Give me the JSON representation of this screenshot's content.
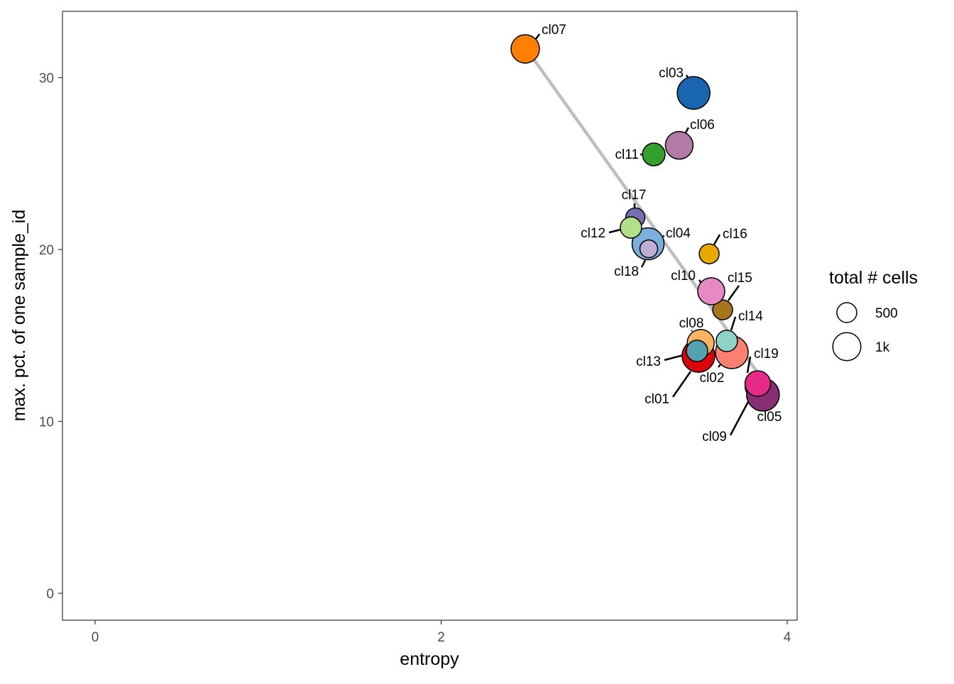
{
  "chart_data": {
    "type": "scatter",
    "xlabel": "entropy",
    "ylabel": "max. pct. of one sample_id",
    "xlim": [
      -0.1,
      4.03
    ],
    "ylim": [
      -1.6,
      33.9
    ],
    "x_ticks": [
      0,
      2,
      4
    ],
    "y_ticks": [
      0,
      10,
      20,
      30
    ],
    "grid": false,
    "legend": {
      "title": "total # cells",
      "position": "right",
      "entries": [
        {
          "label": "500",
          "value": 500
        },
        {
          "label": "1k",
          "value": 1000
        }
      ]
    },
    "trend_line": {
      "color": "#bebebe",
      "points": [
        [
          2.49,
          31.7
        ],
        [
          3.86,
          12.4
        ]
      ]
    },
    "points": [
      {
        "label": "cl09",
        "x": 3.82,
        "y": 12.0,
        "n": 600,
        "color": "#666666"
      },
      {
        "label": "cl07",
        "x": 2.486,
        "y": 31.67,
        "n": 1020,
        "color": "#FF7F00"
      },
      {
        "label": "cl03",
        "x": 3.459,
        "y": 29.11,
        "n": 1350,
        "color": "#1965B0"
      },
      {
        "label": "cl06",
        "x": 3.376,
        "y": 26.06,
        "n": 970,
        "color": "#B17BA6"
      },
      {
        "label": "cl11",
        "x": 3.229,
        "y": 25.53,
        "n": 650,
        "color": "#33A02C"
      },
      {
        "label": "cl17",
        "x": 3.122,
        "y": 21.86,
        "n": 465,
        "color": "#7570B3"
      },
      {
        "label": "cl04",
        "x": 3.196,
        "y": 20.33,
        "n": 1290,
        "color": "#7BAFDE"
      },
      {
        "label": "cl12",
        "x": 3.097,
        "y": 21.28,
        "n": 575,
        "color": "#B2DF8A"
      },
      {
        "label": "cl18",
        "x": 3.2,
        "y": 20.04,
        "n": 400,
        "color": "#BEAED4"
      },
      {
        "label": "cl16",
        "x": 3.549,
        "y": 19.75,
        "n": 500,
        "color": "#E7A900"
      },
      {
        "label": "cl15",
        "x": 3.627,
        "y": 16.49,
        "n": 500,
        "color": "#A6761D"
      },
      {
        "label": "cl10",
        "x": 3.561,
        "y": 17.57,
        "n": 920,
        "color": "#E78AC3"
      },
      {
        "label": "cl01",
        "x": 3.487,
        "y": 13.81,
        "n": 1350,
        "color": "#DC050C"
      },
      {
        "label": "cl08",
        "x": 3.5,
        "y": 14.56,
        "n": 920,
        "color": "#FDB462"
      },
      {
        "label": "cl13",
        "x": 3.479,
        "y": 14.1,
        "n": 575,
        "color": "#55A1B1"
      },
      {
        "label": "cl02",
        "x": 3.68,
        "y": 14.02,
        "n": 1350,
        "color": "#FB8072"
      },
      {
        "label": "cl14",
        "x": 3.651,
        "y": 14.68,
        "n": 575,
        "color": "#8DD3C7"
      },
      {
        "label": "cl05",
        "x": 3.86,
        "y": 11.55,
        "n": 1350,
        "color": "#882E72"
      },
      {
        "label": "cl19",
        "x": 3.83,
        "y": 12.2,
        "n": 830,
        "color": "#E7298A"
      }
    ]
  }
}
